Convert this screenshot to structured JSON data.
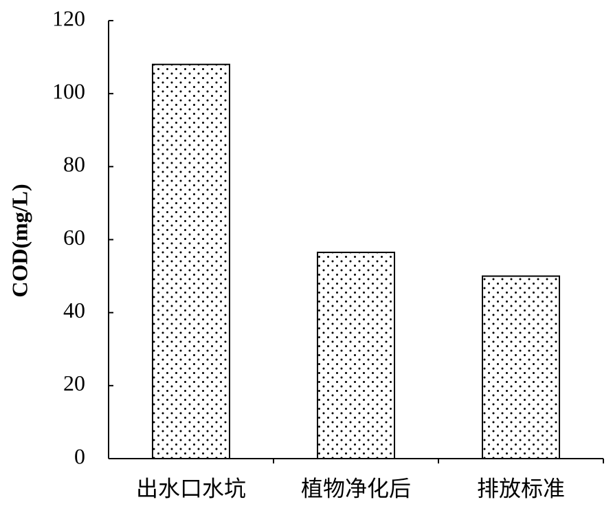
{
  "chart_data": {
    "type": "bar",
    "ylabel": "COD(mg/L)",
    "categories": [
      "出水口水坑",
      "植物净化后",
      "排放标准"
    ],
    "values": [
      108,
      56.5,
      50
    ],
    "color": "#ffffff",
    "ylim": [
      0,
      120
    ],
    "yticks": [
      0,
      20,
      40,
      60,
      80,
      100,
      120
    ],
    "grid": false
  }
}
